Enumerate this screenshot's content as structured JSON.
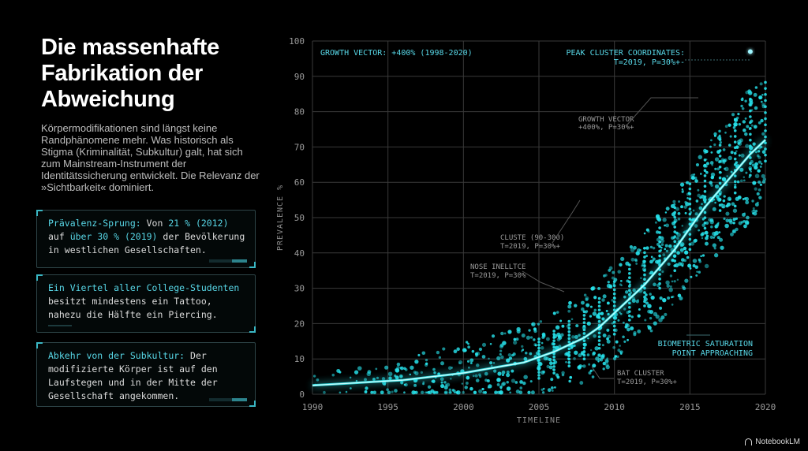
{
  "header": {
    "title": "Die massenhafte Fabrikation der Abweichung",
    "intro": "Körpermodifikationen sind längst keine Randphänomene mehr. Was historisch als Stigma (Kriminalität, Subkultur) galt, hat sich zum Mainstream-Instrument der Identitätssicherung entwickelt. Die Relevanz der »Sichtbarkeit« dominiert."
  },
  "cards": [
    {
      "parts": [
        {
          "text": "Prävalenz-Sprung:",
          "accent": true
        },
        {
          "text": " Von ",
          "accent": false
        },
        {
          "text": "21 % (2012)",
          "accent": true
        },
        {
          "text": " auf ",
          "accent": false
        },
        {
          "text": "über 30 % (2019)",
          "accent": true
        },
        {
          "text": " der Bevölkerung in westlichen Gesellschaften.",
          "accent": false
        }
      ]
    },
    {
      "parts": [
        {
          "text": "Ein Viertel aller College-Studenten",
          "accent": true
        },
        {
          "text": " besitzt mindestens ein Tattoo, nahezu die Hälfte ein Piercing.",
          "accent": false
        }
      ]
    },
    {
      "parts": [
        {
          "text": "Abkehr von der Subkultur:",
          "accent": true
        },
        {
          "text": " Der modifizierte Körper ist auf den Laufstegen und in der Mitte der Gesellschaft angekommen.",
          "accent": false
        }
      ]
    }
  ],
  "chart_data": {
    "type": "scatter",
    "xlabel": "TIMELINE",
    "ylabel": "PREVALENCE %",
    "xlim": [
      1990,
      2020
    ],
    "ylim": [
      0,
      100
    ],
    "xticks": [
      1990,
      1995,
      2000,
      2005,
      2010,
      2015,
      2020
    ],
    "yticks": [
      0,
      10,
      20,
      30,
      40,
      50,
      60,
      70,
      80,
      90,
      100
    ],
    "grid": true,
    "trend": {
      "x": [
        1990,
        1992,
        1994,
        1996,
        1998,
        2000,
        2002,
        2004,
        2006,
        2008,
        2009,
        2010,
        2011,
        2012,
        2013,
        2014,
        2015,
        2016,
        2017,
        2018,
        2019,
        2020
      ],
      "y": [
        2.5,
        3,
        3.5,
        4,
        5,
        6,
        7.5,
        9,
        12,
        16,
        19,
        23,
        27,
        31,
        36,
        41,
        47,
        53,
        58,
        63,
        68,
        72
      ]
    },
    "peak": {
      "x": 2019,
      "y": 97
    },
    "annotations": [
      {
        "text": "GROWTH VECTOR: +400% (1998-2020)"
      },
      {
        "text": "PEAK CLUSTER COORDINATES:"
      },
      {
        "text": "T=2019, P=30%+-"
      },
      {
        "text": "GROWTH VECTOR"
      },
      {
        "text": "+400%, P=30%+"
      },
      {
        "text": "CLUSTE (90-300)"
      },
      {
        "text": "T=2019, P=30%+"
      },
      {
        "text": "NOSE INELLTCE"
      },
      {
        "text": "T=2019, P=30%"
      },
      {
        "text": "BAT CLUSTER"
      },
      {
        "text": "T=2019, P=30%+"
      },
      {
        "text": "BIOMETRIC SATURATION"
      },
      {
        "text": "POINT APPROACHING"
      }
    ]
  },
  "colors": {
    "accent": "#58d8e8",
    "point": "#27e3ec",
    "grid": "#3a3a3a",
    "background": "#000000"
  },
  "brand": {
    "label": "NotebookLM"
  }
}
